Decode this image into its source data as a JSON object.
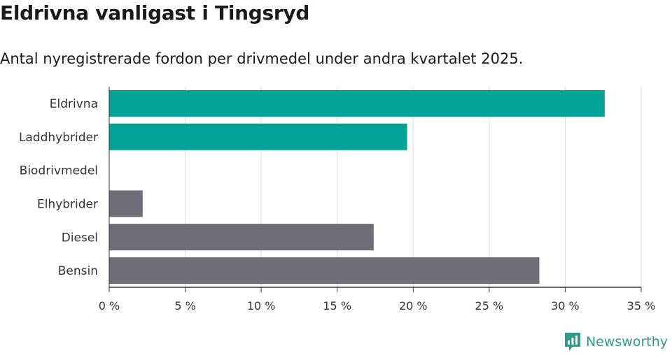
{
  "header": {
    "title": "Eldrivna vanligast i Tingsryd",
    "subtitle": "Antal nyregistrerade fordon per drivmedel under andra kvartalet 2025."
  },
  "brand": {
    "name": "Newsworthy",
    "icon": "newsworthy-logo-icon",
    "color": "#2e9c8a"
  },
  "chart_data": {
    "type": "bar",
    "orientation": "horizontal",
    "categories": [
      "Eldrivna",
      "Laddhybrider",
      "Biodrivmedel",
      "Elhybrider",
      "Diesel",
      "Bensin"
    ],
    "values": [
      32.6,
      19.6,
      0,
      2.2,
      17.4,
      28.3
    ],
    "bar_colors": [
      "#00a398",
      "#00a398",
      "#00a398",
      "#6f6d75",
      "#6f6d75",
      "#6f6d75"
    ],
    "xlim": [
      0,
      35
    ],
    "xticks": [
      0,
      5,
      10,
      15,
      20,
      25,
      30,
      35
    ],
    "tick_labels": [
      "0 %",
      "5 %",
      "10 %",
      "15 %",
      "20 %",
      "25 %",
      "30 %",
      "35 %"
    ],
    "grid": true,
    "xlabel": "",
    "ylabel": ""
  }
}
